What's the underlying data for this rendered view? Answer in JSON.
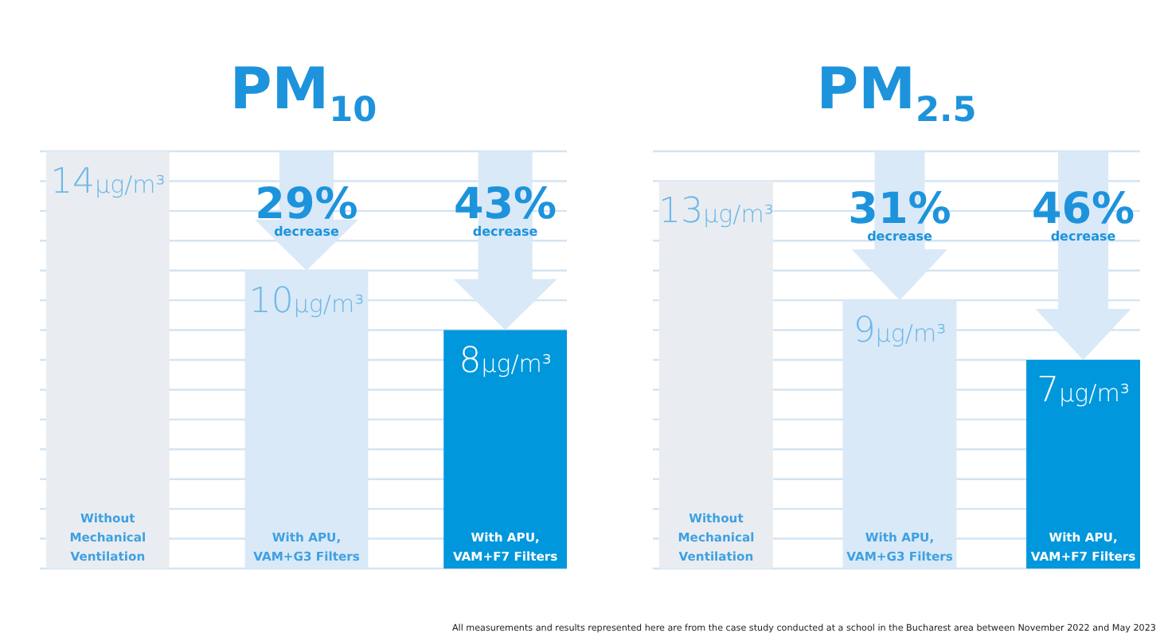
{
  "chart_data": [
    {
      "type": "bar",
      "title": "PM$_{10}$",
      "categories": [
        "Without Mechanical Ventilation",
        "With APU, VAM+G3 Filters",
        "With APU, VAM+F7 Filters"
      ],
      "values": [
        14,
        10,
        8
      ],
      "colors": [
        "#e9edf1",
        "#d9e9f7",
        "#0097dc"
      ],
      "value_labels": [
        "14μg/m³",
        "10μg/m³",
        "8μg/m³"
      ],
      "ylim": [
        0,
        14
      ],
      "yticks": [
        {
          "value": 0,
          "label": null
        },
        {
          "value": 1,
          "label": null
        },
        {
          "value": 2,
          "label": null
        },
        {
          "value": 3,
          "label": null
        },
        {
          "value": 4,
          "label": null
        },
        {
          "value": 5,
          "label": null
        },
        {
          "value": 6,
          "label": null
        },
        {
          "value": 7,
          "label": null
        },
        {
          "value": 8,
          "label": null
        },
        {
          "value": 9,
          "label": null
        },
        {
          "value": 10,
          "label": null
        },
        {
          "value": 11,
          "label": null
        },
        {
          "value": 12,
          "label": null
        },
        {
          "value": 13,
          "label": null
        },
        {
          "value": 14,
          "label": null
        }
      ],
      "grid": "y",
      "tick_labels": "x",
      "annotations": [
        {
          "text": "29% decrease",
          "x": "With APU, VAM+G3 Filters",
          "y": 10
        },
        {
          "text": "43% decrease",
          "x": "With APU, VAM+F7 Filters",
          "y": 8
        }
      ]
    },
    {
      "type": "bar",
      "title": "PM$_{2.5}$",
      "categories": [
        "Without Mechanical Ventilation",
        "With APU, VAM+G3 Filters",
        "With APU, VAM+F7 Filters"
      ],
      "values": [
        13,
        9,
        7
      ],
      "colors": [
        "#e9edf1",
        "#d9e9f7",
        "#0097dc"
      ],
      "value_labels": [
        "13μg/m³",
        "9μg/m³",
        "7μg/m³"
      ],
      "ylim": [
        0,
        14
      ],
      "yticks": [
        {
          "value": 0,
          "label": null
        },
        {
          "value": 1,
          "label": null
        },
        {
          "value": 2,
          "label": null
        },
        {
          "value": 3,
          "label": null
        },
        {
          "value": 4,
          "label": null
        },
        {
          "value": 5,
          "label": null
        },
        {
          "value": 6,
          "label": null
        },
        {
          "value": 7,
          "label": null
        },
        {
          "value": 8,
          "label": null
        },
        {
          "value": 9,
          "label": null
        },
        {
          "value": 10,
          "label": null
        },
        {
          "value": 11,
          "label": null
        },
        {
          "value": 12,
          "label": null
        },
        {
          "value": 13,
          "label": null
        },
        {
          "value": 14,
          "label": null
        }
      ],
      "grid": "y",
      "tick_labels": "x",
      "annotations": [
        {
          "text": "31% decrease",
          "x": "With APU, VAM+G3 Filters",
          "y": 9
        },
        {
          "text": "46% decrease",
          "x": "With APU, VAM+F7 Filters",
          "y": 7
        },
        "All measurements and results represented here are from the case study conducted at a school in the Bucharest area between November 2022 and May 2023"
      ]
    }
  ]
}
